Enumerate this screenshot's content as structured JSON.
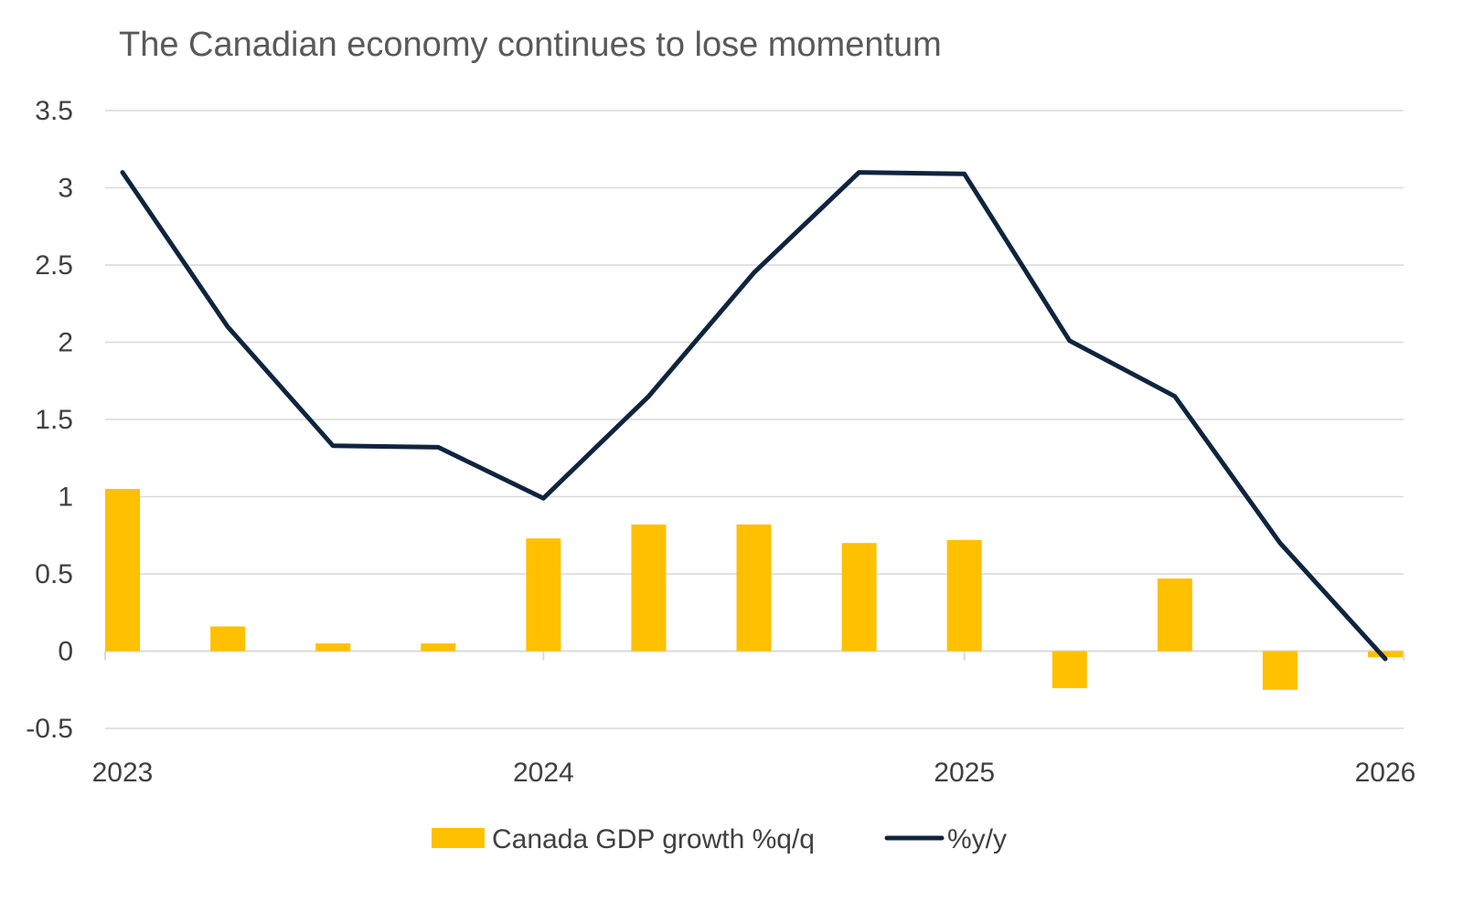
{
  "chart_data": {
    "type": "bar",
    "title": "The Canadian economy continues to lose momentum",
    "xlabel": "",
    "ylabel": "",
    "ylim": [
      -0.5,
      3.5
    ],
    "y_ticks": [
      "3.5",
      "3",
      "2.5",
      "2",
      "1.5",
      "1",
      "0.5",
      "0",
      "-0.5"
    ],
    "y_tick_values": [
      3.5,
      3,
      2.5,
      2,
      1.5,
      1,
      0.5,
      0,
      -0.5
    ],
    "x_tick_labels": [
      "2023",
      "2024",
      "2025",
      "2026"
    ],
    "categories": [
      "2023 Q1",
      "2023 Q2",
      "2023 Q3",
      "2023 Q4",
      "2024 Q1",
      "2024 Q2",
      "2024 Q3",
      "2024 Q4",
      "2025 Q1",
      "2025 Q2",
      "2025 Q3",
      "2025 Q4",
      "2026 Q1"
    ],
    "grid": true,
    "legend_position": "bottom",
    "series": [
      {
        "name": "Canada GDP growth %q/q",
        "type": "bar",
        "color": "#FFC000",
        "values": [
          1.05,
          0.16,
          0.05,
          0.05,
          0.73,
          0.82,
          0.82,
          0.7,
          0.72,
          -0.24,
          0.47,
          -0.25,
          -0.04
        ]
      },
      {
        "name": "%y/y",
        "type": "line",
        "color": "#0F243E",
        "values": [
          3.1,
          2.1,
          1.33,
          1.32,
          0.99,
          1.65,
          2.45,
          3.1,
          3.09,
          2.01,
          1.65,
          0.7,
          -0.05
        ]
      }
    ]
  }
}
